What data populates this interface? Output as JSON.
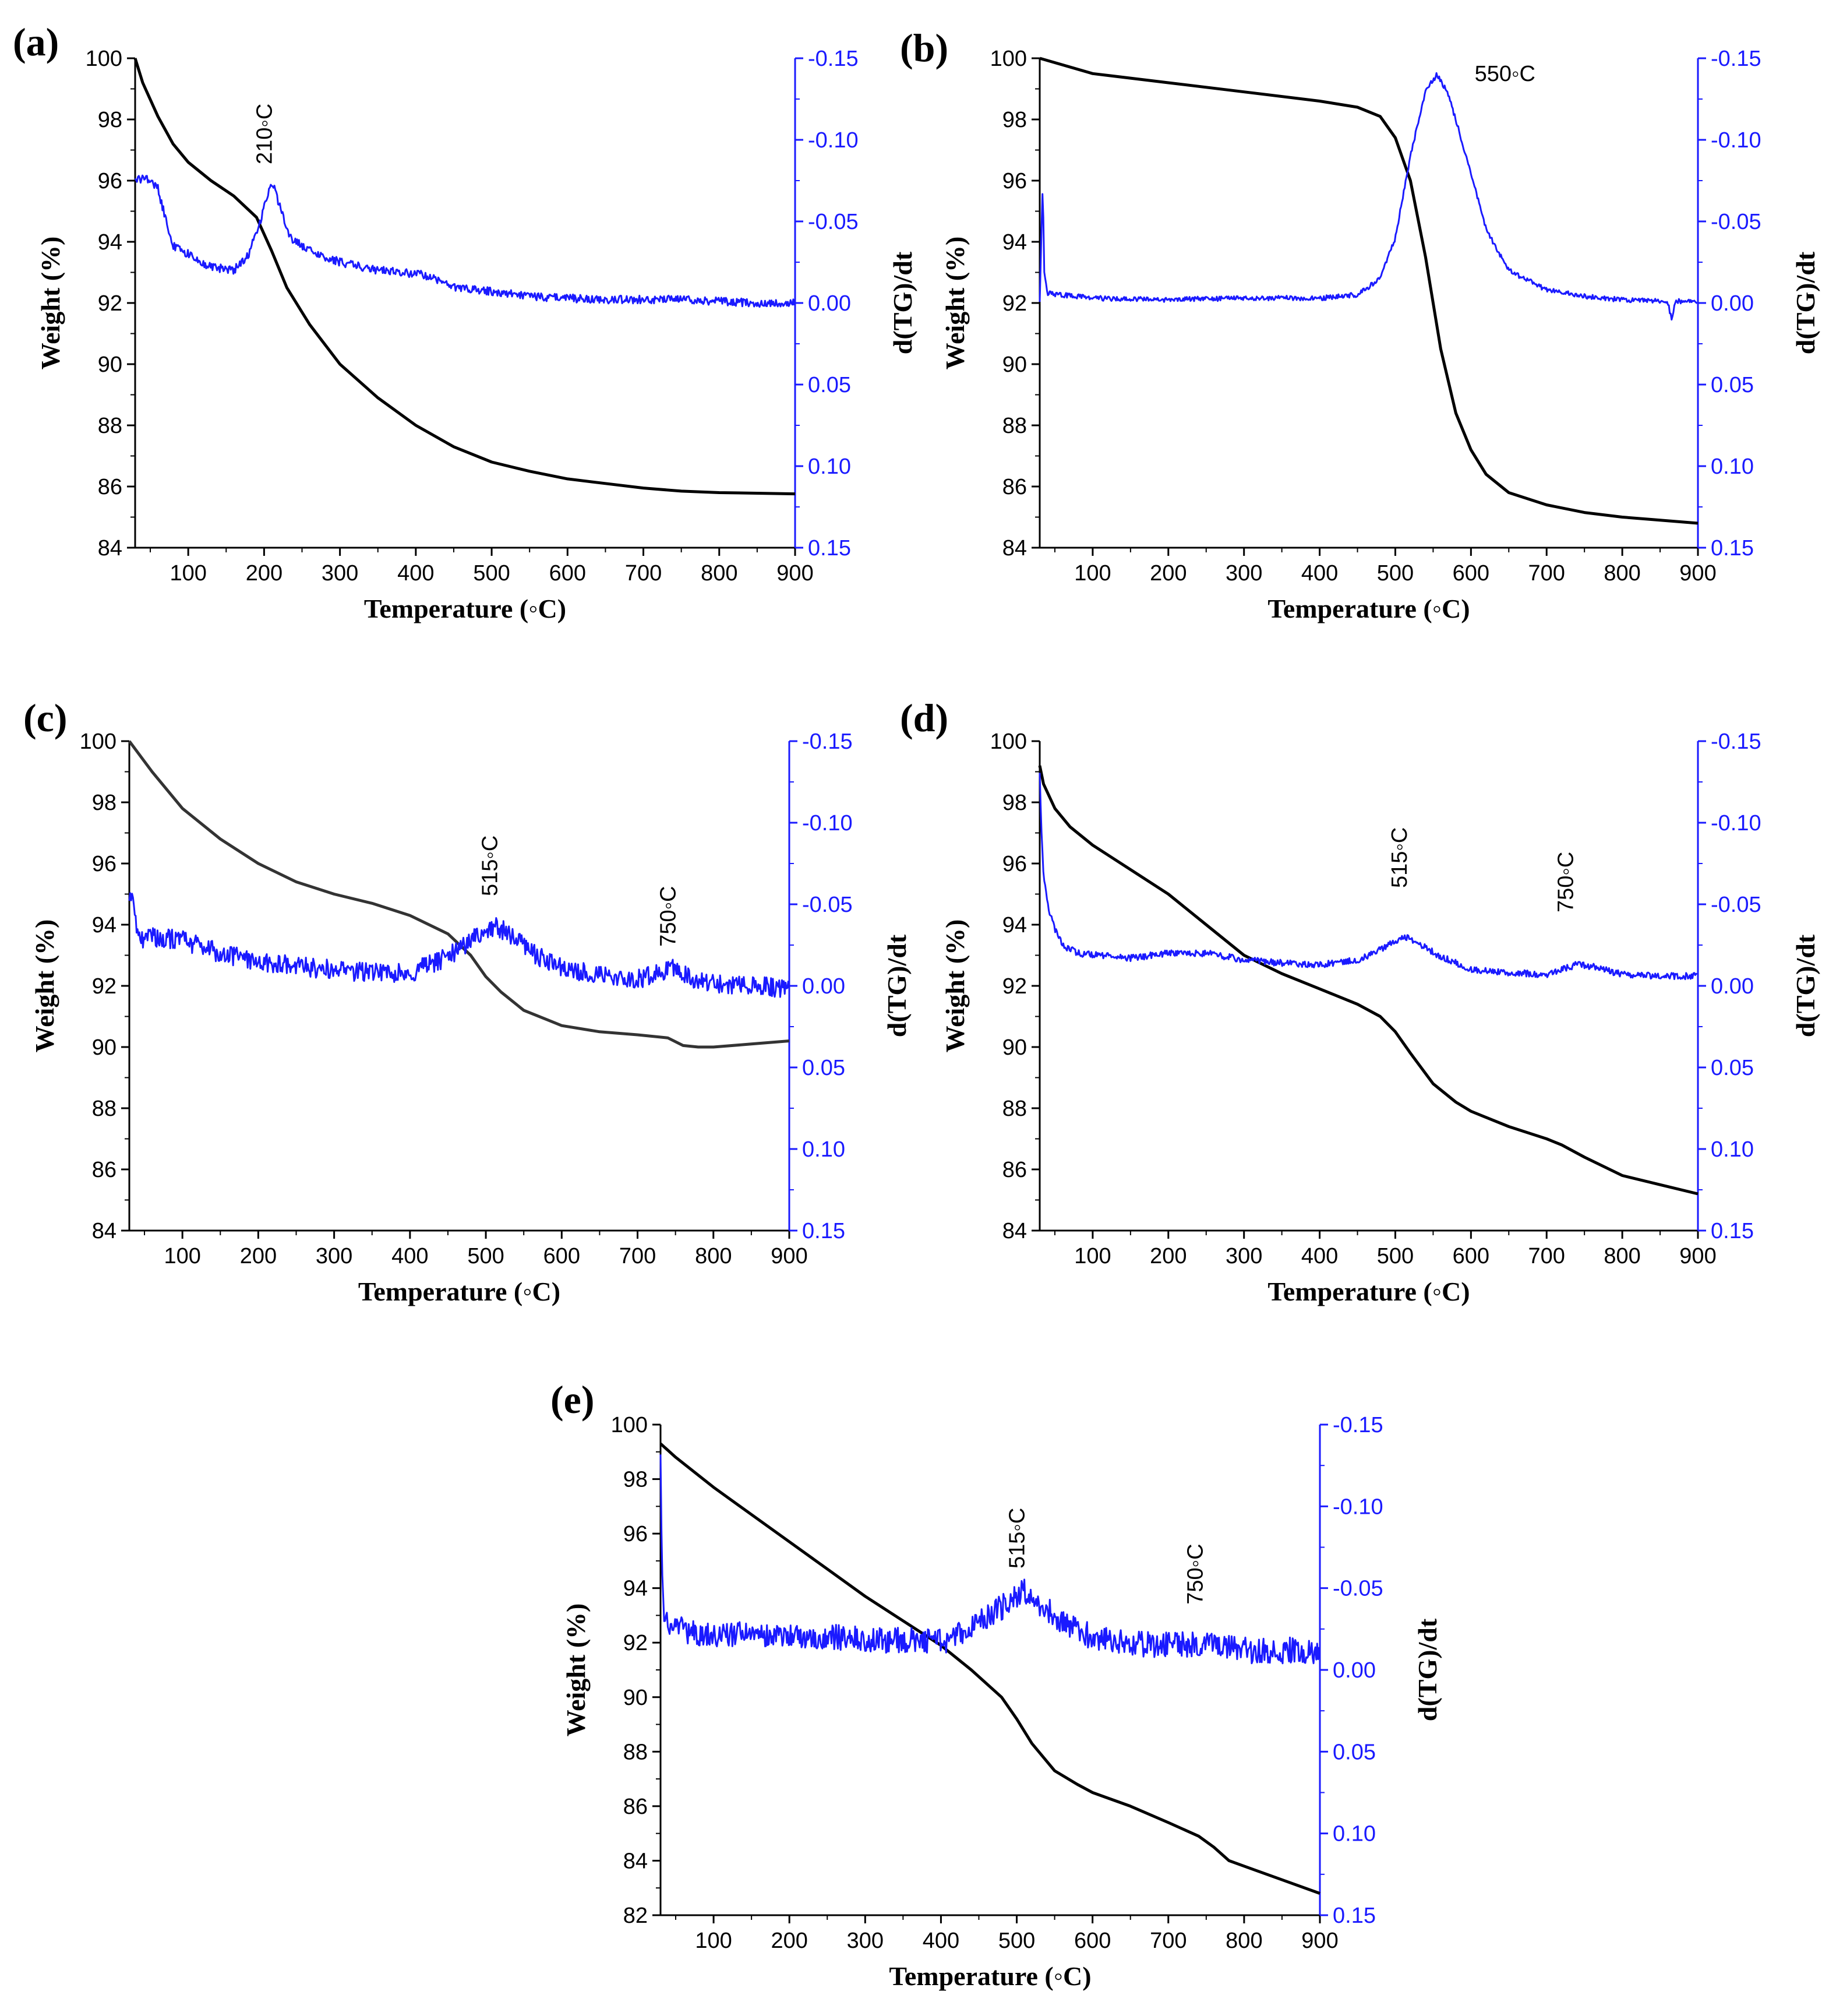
{
  "colors": {
    "weight": "#000000",
    "dtg": "#1a1aff",
    "axis_black": "#000000",
    "axis_blue": "#1a1aff"
  },
  "chart_data": [
    {
      "type": "line",
      "label": "(a)",
      "xlabel": "Temperature (◦C)",
      "ylabel": "Weight (%)",
      "y2label": "d(TG)/dt",
      "xlim": [
        30,
        900
      ],
      "ylim": [
        84,
        100
      ],
      "y2lim": [
        -0.15,
        0.15
      ],
      "xticks": [
        "100",
        "200",
        "300",
        "400",
        "500",
        "600",
        "700",
        "800",
        "900"
      ],
      "yticks": [
        "84",
        "86",
        "88",
        "90",
        "92",
        "94",
        "96",
        "98",
        "100"
      ],
      "y2ticks": [
        "-0.15",
        "-0.10",
        "-0.05",
        "0.00",
        "0.05",
        "0.10",
        "0.15"
      ],
      "annotations": [
        {
          "text": "210◦C",
          "x": 210,
          "y2": -0.085,
          "rotate": true
        }
      ],
      "series": [
        {
          "name": "Weight",
          "axis": "left",
          "color": "#000000",
          "x": [
            30,
            40,
            60,
            80,
            100,
            130,
            160,
            190,
            210,
            230,
            260,
            300,
            350,
            400,
            450,
            500,
            550,
            600,
            650,
            700,
            750,
            800,
            850,
            900
          ],
          "y": [
            100,
            99.2,
            98.1,
            97.2,
            96.6,
            96.0,
            95.5,
            94.8,
            93.7,
            92.5,
            91.3,
            90.0,
            88.9,
            88.0,
            87.3,
            86.8,
            86.5,
            86.25,
            86.1,
            85.95,
            85.85,
            85.8,
            85.78,
            85.76
          ]
        },
        {
          "name": "d(TG)/dt",
          "axis": "right",
          "color": "#1a1aff",
          "noise": 0.0025,
          "x": [
            30,
            45,
            60,
            70,
            80,
            100,
            130,
            160,
            180,
            195,
            205,
            212,
            220,
            235,
            260,
            300,
            350,
            400,
            420,
            450,
            500,
            550,
            600,
            650,
            700,
            750,
            800,
            850,
            900
          ],
          "y": [
            -0.075,
            -0.077,
            -0.07,
            -0.052,
            -0.035,
            -0.03,
            -0.022,
            -0.02,
            -0.03,
            -0.05,
            -0.068,
            -0.072,
            -0.06,
            -0.04,
            -0.032,
            -0.025,
            -0.02,
            -0.018,
            -0.016,
            -0.01,
            -0.007,
            -0.004,
            -0.003,
            -0.002,
            -0.002,
            -0.002,
            -0.001,
            0.0,
            0.0
          ]
        }
      ]
    },
    {
      "type": "line",
      "label": "(b)",
      "xlabel": "Temperature (◦C)",
      "ylabel": "Weight (%)",
      "y2label": "d(TG)/dt",
      "xlim": [
        30,
        900
      ],
      "ylim": [
        84,
        100
      ],
      "y2lim": [
        -0.15,
        0.15
      ],
      "xticks": [
        "100",
        "200",
        "300",
        "400",
        "500",
        "600",
        "700",
        "800",
        "900"
      ],
      "yticks": [
        "84",
        "86",
        "88",
        "90",
        "92",
        "94",
        "96",
        "98",
        "100"
      ],
      "y2ticks": [
        "-0.15",
        "-0.10",
        "-0.05",
        "0.00",
        "0.05",
        "0.10",
        "0.15"
      ],
      "annotations": [
        {
          "text": "550◦C",
          "x": 645,
          "y2": -0.136,
          "rotate": false
        }
      ],
      "series": [
        {
          "name": "Weight",
          "axis": "left",
          "color": "#000000",
          "x": [
            30,
            100,
            200,
            300,
            400,
            450,
            480,
            500,
            520,
            540,
            560,
            580,
            600,
            620,
            650,
            700,
            750,
            800,
            850,
            900
          ],
          "y": [
            100,
            99.5,
            99.2,
            98.9,
            98.6,
            98.4,
            98.1,
            97.4,
            96.0,
            93.5,
            90.5,
            88.4,
            87.2,
            86.4,
            85.8,
            85.4,
            85.15,
            85.0,
            84.9,
            84.8
          ]
        },
        {
          "name": "d(TG)/dt",
          "axis": "right",
          "color": "#1a1aff",
          "noise": 0.0015,
          "x": [
            30,
            34,
            36,
            40,
            100,
            200,
            300,
            400,
            450,
            480,
            500,
            520,
            540,
            555,
            570,
            600,
            620,
            650,
            700,
            750,
            800,
            860,
            865,
            870,
            900
          ],
          "y": [
            0.0,
            -0.075,
            -0.02,
            -0.006,
            -0.003,
            -0.002,
            -0.003,
            -0.003,
            -0.005,
            -0.015,
            -0.04,
            -0.09,
            -0.13,
            -0.14,
            -0.128,
            -0.08,
            -0.045,
            -0.02,
            -0.008,
            -0.004,
            -0.002,
            -0.001,
            0.01,
            -0.001,
            -0.001
          ]
        }
      ]
    },
    {
      "type": "line",
      "label": "(c)",
      "xlabel": "Temperature (◦C)",
      "ylabel": "Weight (%)",
      "y2label": "d(TG)/dt",
      "xlim": [
        30,
        900
      ],
      "ylim": [
        84,
        100
      ],
      "y2lim": [
        -0.15,
        0.15
      ],
      "xticks": [
        "100",
        "200",
        "300",
        "400",
        "500",
        "600",
        "700",
        "800",
        "900"
      ],
      "yticks": [
        "84",
        "86",
        "88",
        "90",
        "92",
        "94",
        "96",
        "98",
        "100"
      ],
      "y2ticks": [
        "-0.15",
        "-0.10",
        "-0.05",
        "0.00",
        "0.05",
        "0.10",
        "0.15"
      ],
      "annotations": [
        {
          "text": "515◦C",
          "x": 515,
          "y2": -0.055,
          "rotate": true
        },
        {
          "text": "750◦C",
          "x": 750,
          "y2": -0.024,
          "rotate": true
        }
      ],
      "series": [
        {
          "name": "Weight",
          "axis": "left",
          "color": "#333333",
          "x": [
            30,
            60,
            100,
            150,
            200,
            250,
            300,
            350,
            400,
            450,
            480,
            500,
            520,
            550,
            580,
            600,
            650,
            700,
            740,
            760,
            780,
            800,
            850,
            900
          ],
          "y": [
            100,
            99.0,
            97.8,
            96.8,
            96.0,
            95.4,
            95.0,
            94.7,
            94.3,
            93.7,
            93.0,
            92.3,
            91.8,
            91.2,
            90.9,
            90.7,
            90.5,
            90.4,
            90.3,
            90.05,
            90.0,
            90.0,
            90.1,
            90.2
          ]
        },
        {
          "name": "d(TG)/dt",
          "axis": "right",
          "color": "#1a1aff",
          "noise": 0.006,
          "x": [
            30,
            34,
            40,
            50,
            60,
            100,
            150,
            200,
            250,
            300,
            350,
            400,
            450,
            480,
            500,
            515,
            530,
            560,
            600,
            650,
            700,
            750,
            770,
            800,
            850,
            900
          ],
          "y": [
            -0.05,
            -0.055,
            -0.035,
            -0.028,
            -0.03,
            -0.028,
            -0.02,
            -0.015,
            -0.012,
            -0.01,
            -0.008,
            -0.008,
            -0.018,
            -0.028,
            -0.032,
            -0.036,
            -0.032,
            -0.02,
            -0.012,
            -0.006,
            -0.004,
            -0.012,
            -0.004,
            -0.002,
            0.0,
            0.002
          ]
        }
      ]
    },
    {
      "type": "line",
      "label": "(d)",
      "xlabel": "Temperature (◦C)",
      "ylabel": "Weight (%)",
      "y2label": "d(TG)/dt",
      "xlim": [
        30,
        900
      ],
      "ylim": [
        84,
        100
      ],
      "y2lim": [
        -0.15,
        0.15
      ],
      "xticks": [
        "100",
        "200",
        "300",
        "400",
        "500",
        "600",
        "700",
        "800",
        "900"
      ],
      "yticks": [
        "84",
        "86",
        "88",
        "90",
        "92",
        "94",
        "96",
        "98",
        "100"
      ],
      "y2ticks": [
        "-0.15",
        "-0.10",
        "-0.05",
        "0.00",
        "0.05",
        "0.10",
        "0.15"
      ],
      "annotations": [
        {
          "text": "515◦C",
          "x": 515,
          "y2": -0.06,
          "rotate": true
        },
        {
          "text": "750◦C",
          "x": 735,
          "y2": -0.045,
          "rotate": true
        }
      ],
      "series": [
        {
          "name": "Weight",
          "axis": "left",
          "color": "#000000",
          "x": [
            30,
            35,
            50,
            70,
            100,
            150,
            200,
            250,
            300,
            350,
            400,
            450,
            480,
            500,
            520,
            550,
            580,
            600,
            650,
            700,
            720,
            750,
            800,
            850,
            900
          ],
          "y": [
            99.2,
            98.6,
            97.8,
            97.2,
            96.6,
            95.8,
            95.0,
            94.0,
            93.0,
            92.4,
            91.9,
            91.4,
            91.0,
            90.5,
            89.8,
            88.8,
            88.2,
            87.9,
            87.4,
            87.0,
            86.8,
            86.4,
            85.8,
            85.5,
            85.2
          ]
        },
        {
          "name": "d(TG)/dt",
          "axis": "right",
          "color": "#1a1aff",
          "noise": 0.002,
          "x": [
            30,
            32,
            35,
            40,
            50,
            60,
            80,
            100,
            150,
            200,
            250,
            300,
            350,
            400,
            450,
            480,
            500,
            515,
            530,
            560,
            600,
            650,
            700,
            740,
            760,
            800,
            850,
            900
          ],
          "y": [
            -0.13,
            -0.1,
            -0.07,
            -0.05,
            -0.035,
            -0.025,
            -0.02,
            -0.019,
            -0.017,
            -0.02,
            -0.02,
            -0.016,
            -0.014,
            -0.013,
            -0.016,
            -0.022,
            -0.028,
            -0.03,
            -0.026,
            -0.018,
            -0.01,
            -0.008,
            -0.007,
            -0.013,
            -0.012,
            -0.007,
            -0.006,
            -0.006
          ]
        }
      ]
    },
    {
      "type": "line",
      "label": "(e)",
      "xlabel": "Temperature (◦C)",
      "ylabel": "Weight (%)",
      "y2label": "d(TG)/dt",
      "xlim": [
        30,
        900
      ],
      "ylim": [
        82,
        100
      ],
      "y2lim": [
        -0.15,
        0.15
      ],
      "xticks": [
        "100",
        "200",
        "300",
        "400",
        "500",
        "600",
        "700",
        "800",
        "900"
      ],
      "yticks": [
        "82",
        "84",
        "86",
        "88",
        "90",
        "92",
        "94",
        "96",
        "98",
        "100"
      ],
      "y2ticks": [
        "-0.15",
        "-0.10",
        "-0.05",
        "0.00",
        "0.05",
        "0.10",
        "0.15"
      ],
      "annotations": [
        {
          "text": "515◦C",
          "x": 510,
          "y2": -0.062,
          "rotate": true
        },
        {
          "text": "750◦C",
          "x": 745,
          "y2": -0.04,
          "rotate": true
        }
      ],
      "series": [
        {
          "name": "Weight",
          "axis": "left",
          "color": "#000000",
          "x": [
            30,
            50,
            100,
            150,
            200,
            250,
            300,
            350,
            400,
            440,
            480,
            500,
            520,
            550,
            580,
            600,
            650,
            700,
            740,
            760,
            780,
            800,
            850,
            900
          ],
          "y": [
            99.3,
            98.8,
            97.7,
            96.7,
            95.7,
            94.7,
            93.7,
            92.8,
            91.9,
            91.0,
            90.0,
            89.2,
            88.3,
            87.3,
            86.8,
            86.5,
            86.0,
            85.4,
            84.9,
            84.5,
            84.0,
            83.8,
            83.3,
            82.8
          ]
        },
        {
          "name": "d(TG)/dt",
          "axis": "right",
          "color": "#1a1aff",
          "noise": 0.008,
          "x": [
            30,
            32,
            35,
            40,
            60,
            100,
            150,
            200,
            250,
            300,
            350,
            400,
            440,
            470,
            500,
            510,
            530,
            560,
            600,
            650,
            700,
            750,
            800,
            850,
            900
          ],
          "y": [
            -0.13,
            -0.06,
            -0.03,
            -0.026,
            -0.024,
            -0.022,
            -0.021,
            -0.021,
            -0.02,
            -0.019,
            -0.018,
            -0.017,
            -0.025,
            -0.035,
            -0.045,
            -0.048,
            -0.04,
            -0.03,
            -0.02,
            -0.016,
            -0.015,
            -0.016,
            -0.012,
            -0.012,
            -0.012
          ]
        }
      ]
    }
  ]
}
